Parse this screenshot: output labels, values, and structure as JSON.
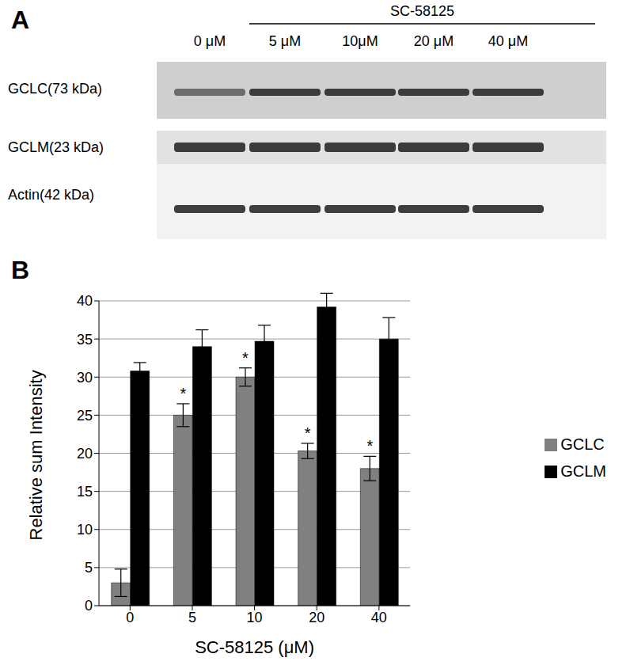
{
  "blot": {
    "panel_label": "A",
    "treatment": "SC-58125",
    "lanes": [
      "0 μM",
      "5 μM",
      "10μM",
      "20 μM",
      "40 μM"
    ],
    "rows": [
      "GCLC(73 kDa)",
      "GCLM(23 kDa)",
      "Actin(42 kDa)"
    ]
  },
  "chart_data": {
    "type": "bar",
    "annotations": [
      "B"
    ],
    "x_label": "SC-58125 (μM)",
    "y_label": "Relative sum Intensity",
    "categories": [
      "0",
      "5",
      "10",
      "20",
      "40"
    ],
    "series": [
      {
        "name": "GCLC",
        "color": "#808080",
        "values": [
          3,
          25,
          30,
          20.3,
          18
        ],
        "errors": [
          1.8,
          1.5,
          1.2,
          1,
          1.6
        ],
        "significance": [
          null,
          "*",
          "*",
          "*",
          "*"
        ]
      },
      {
        "name": "GCLM",
        "color": "#000000",
        "values": [
          30.8,
          34,
          34.7,
          39.2,
          35
        ],
        "errors": [
          1.1,
          2.2,
          2.1,
          1.8,
          2.8
        ]
      }
    ],
    "ylim": [
      0,
      40
    ],
    "yticks": [
      0,
      5,
      10,
      15,
      20,
      25,
      30,
      35,
      40
    ],
    "grid": true,
    "legend": "right"
  }
}
